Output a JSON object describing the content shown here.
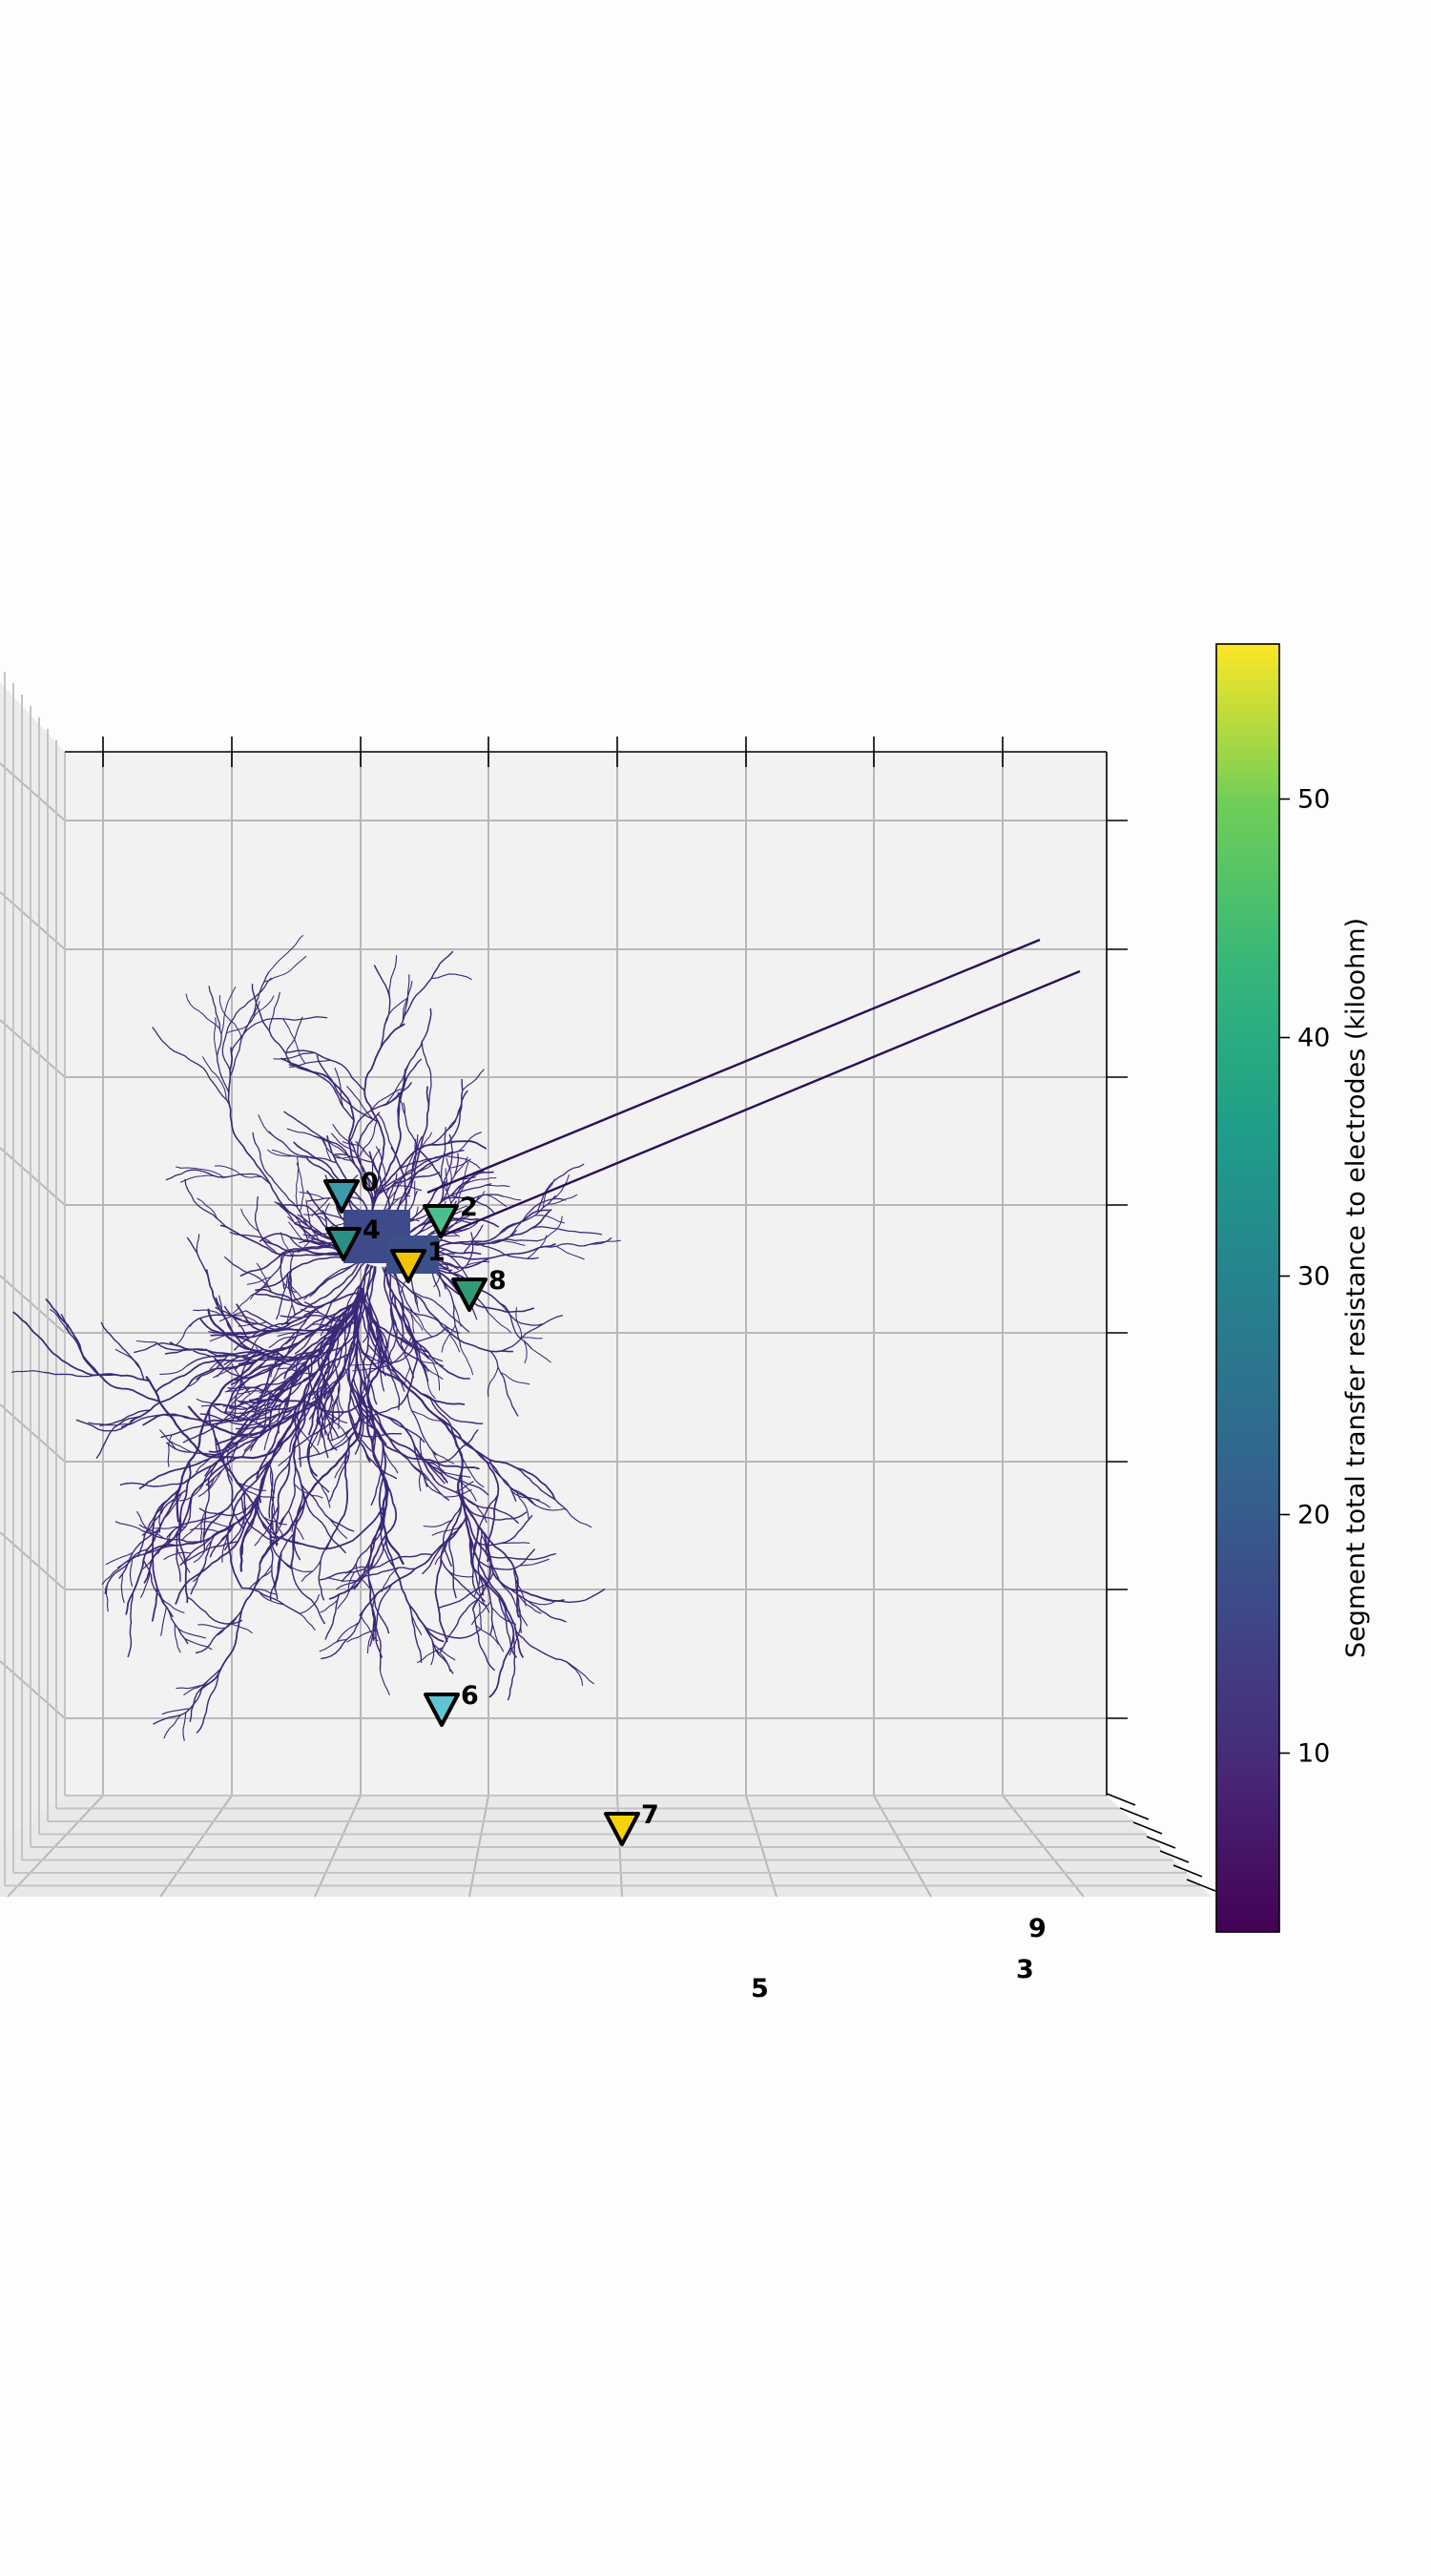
{
  "chart_data": {
    "type": "scatter",
    "projection": "3d",
    "title": "",
    "colorbar": {
      "label": "Segment total transfer resistance to electrodes (kiloohm)",
      "colormap": "viridis",
      "range": [
        2.5,
        56.5
      ],
      "ticks": [
        10,
        20,
        30,
        40,
        50
      ],
      "tick_labels": [
        "10",
        "20",
        "30",
        "40",
        "50"
      ]
    },
    "grid": true,
    "morphology_color": "#3b2877",
    "electrodes": [
      {
        "label": "0",
        "value": 22,
        "color": "#3e9aab"
      },
      {
        "label": "4",
        "value": 33,
        "color": "#2a8f86"
      },
      {
        "label": "2",
        "value": 40,
        "color": "#4cbe8c"
      },
      {
        "label": "1",
        "value": 55,
        "color": "#f1c400"
      },
      {
        "label": "8",
        "value": 38,
        "color": "#2f9a73"
      },
      {
        "label": "6",
        "value": 28,
        "color": "#5fc4d4"
      },
      {
        "label": "7",
        "value": 55,
        "color": "#f6d20c"
      },
      {
        "label": "9",
        "value": null,
        "color": null
      },
      {
        "label": "3",
        "value": null,
        "color": null
      },
      {
        "label": "5",
        "value": null,
        "color": null
      }
    ]
  }
}
